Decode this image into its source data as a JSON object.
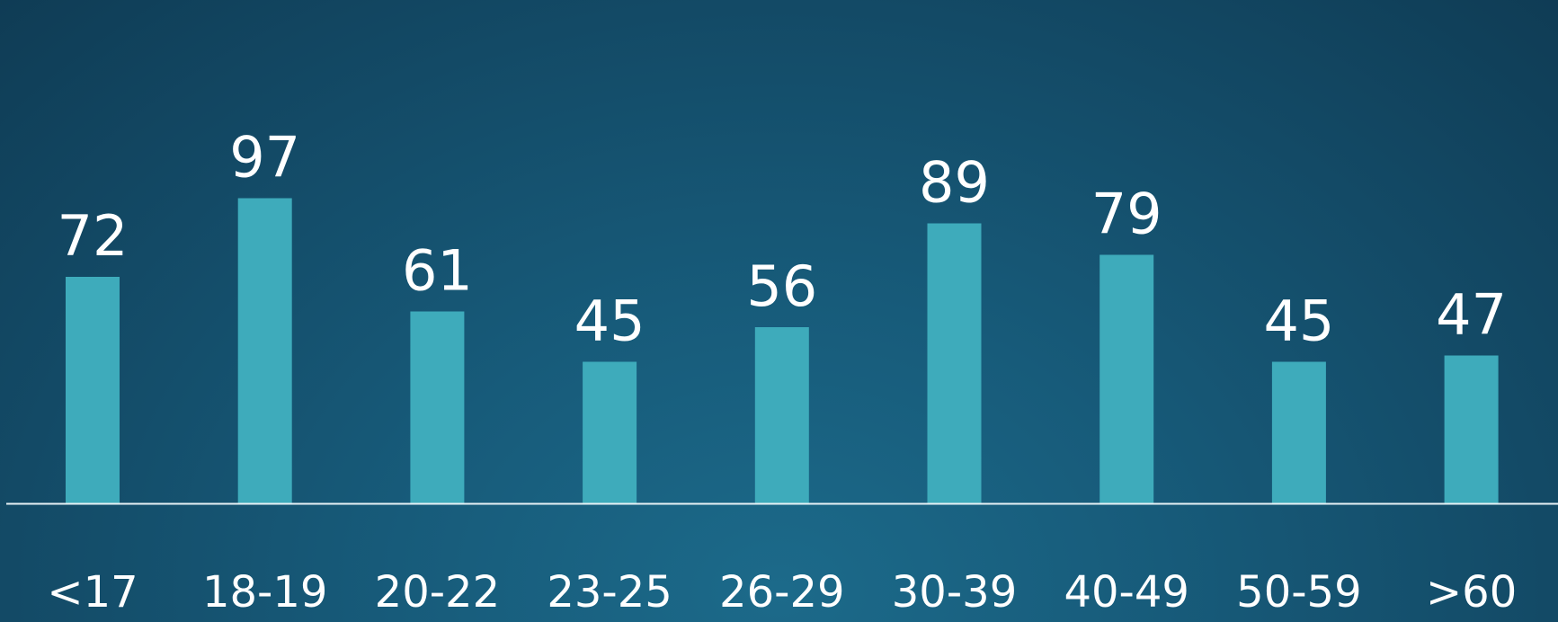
{
  "colors": {
    "bar": "#3eabbb",
    "baseline": "#e8f2f6",
    "text": "#ffffff"
  },
  "chart_data": {
    "type": "bar",
    "categories": [
      "<17",
      "18-19",
      "20-22",
      "23-25",
      "26-29",
      "30-39",
      "40-49",
      "50-59",
      ">60"
    ],
    "values": [
      72,
      97,
      61,
      45,
      56,
      89,
      79,
      45,
      47
    ],
    "title": "",
    "xlabel": "",
    "ylabel": "",
    "ylim": [
      0,
      100
    ],
    "grid": false,
    "data_labels": true
  }
}
